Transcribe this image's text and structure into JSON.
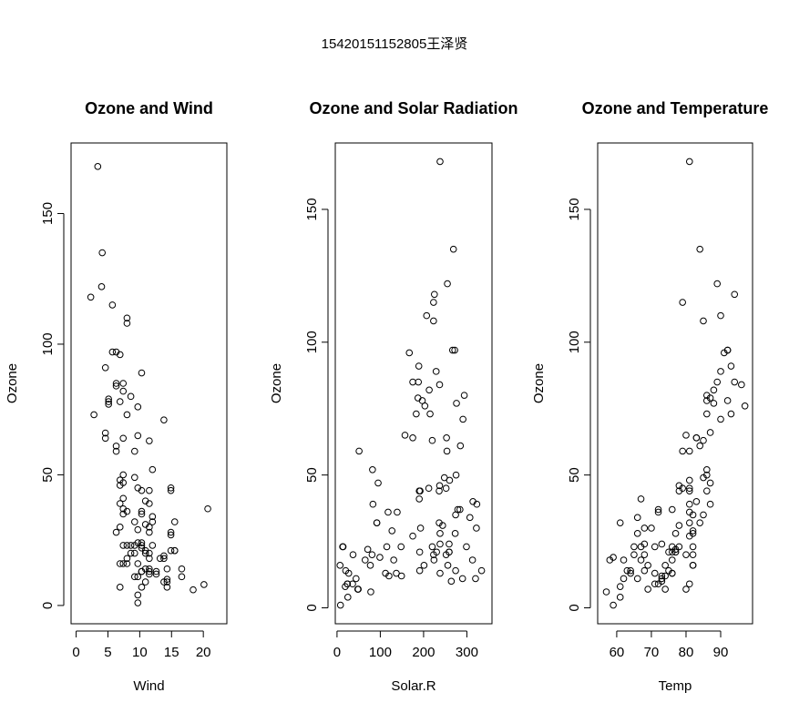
{
  "title": "15420151152805王泽贤",
  "chart_data": [
    {
      "type": "scatter",
      "title": "Ozone and Wind",
      "xlabel": "Wind",
      "ylabel": "Ozone",
      "color": "#000000",
      "xlim": [
        -0.8,
        23.7
      ],
      "ylim": [
        -7,
        177
      ],
      "xticks": [
        0,
        5,
        10,
        15,
        20
      ],
      "yticks": [
        0,
        50,
        100,
        150
      ],
      "x": [
        7.4,
        8.0,
        12.6,
        11.5,
        14.9,
        8.6,
        13.8,
        20.1,
        6.9,
        9.7,
        9.2,
        10.9,
        13.2,
        11.5,
        12.0,
        18.4,
        11.5,
        9.7,
        9.7,
        16.6,
        9.7,
        12.0,
        12.0,
        14.9,
        5.7,
        7.4,
        9.7,
        13.8,
        11.5,
        8.0,
        14.9,
        20.7,
        9.2,
        11.5,
        10.3,
        4.1,
        9.2,
        9.2,
        4.6,
        10.9,
        5.1,
        6.3,
        5.7,
        7.4,
        14.3,
        14.9,
        14.3,
        6.9,
        10.3,
        6.3,
        5.1,
        11.5,
        6.9,
        8.6,
        8.0,
        8.6,
        12.0,
        7.4,
        7.4,
        7.4,
        9.2,
        6.9,
        13.8,
        7.4,
        6.9,
        7.4,
        4.6,
        4.0,
        10.3,
        8.0,
        11.5,
        11.5,
        9.7,
        10.3,
        6.3,
        7.4,
        10.9,
        10.3,
        15.5,
        14.3,
        9.7,
        3.4,
        8.0,
        9.7,
        2.3,
        6.3,
        6.3,
        6.9,
        5.1,
        2.8,
        4.6,
        7.4,
        15.5,
        10.9,
        10.3,
        10.9,
        9.7,
        14.9,
        15.5,
        6.3,
        10.9,
        11.5,
        6.9,
        13.8,
        10.3,
        10.3,
        8.0,
        12.6,
        9.2,
        10.3,
        10.3,
        16.6,
        6.9,
        14.3,
        8.0,
        11.5
      ],
      "values": [
        41,
        36,
        12,
        18,
        28,
        23,
        19,
        8,
        7,
        16,
        11,
        14,
        18,
        14,
        34,
        6,
        30,
        11,
        1,
        11,
        4,
        32,
        23,
        45,
        115,
        37,
        29,
        71,
        39,
        23,
        21,
        37,
        20,
        12,
        13,
        135,
        49,
        32,
        64,
        40,
        77,
        97,
        97,
        85,
        10,
        27,
        7,
        48,
        35,
        61,
        79,
        63,
        16,
        80,
        108,
        20,
        52,
        82,
        50,
        64,
        59,
        39,
        9,
        16,
        78,
        35,
        66,
        122,
        89,
        110,
        44,
        28,
        65,
        22,
        59,
        23,
        31,
        44,
        21,
        9,
        45,
        168,
        73,
        76,
        118,
        84,
        85,
        96,
        78,
        73,
        91,
        47,
        32,
        20,
        23,
        21,
        24,
        44,
        21,
        28,
        9,
        13,
        46,
        18,
        13,
        24,
        16,
        13,
        23,
        36,
        7,
        14,
        30,
        14,
        18,
        20
      ]
    },
    {
      "type": "scatter",
      "title": "Ozone and Solar Radiation",
      "xlabel": "Solar.R",
      "ylabel": "Ozone",
      "color": "#000000",
      "xlim": [
        -4,
        358
      ],
      "ylim": [
        -6,
        175
      ],
      "xticks": [
        0,
        100,
        200,
        300
      ],
      "yticks": [
        0,
        50,
        100,
        150
      ],
      "x": [
        190,
        118,
        149,
        313,
        299,
        99,
        19,
        256,
        290,
        274,
        65,
        334,
        307,
        78,
        322,
        44,
        8,
        320,
        25,
        92,
        13,
        252,
        223,
        279,
        127,
        291,
        323,
        148,
        191,
        284,
        37,
        120,
        137,
        269,
        248,
        236,
        175,
        314,
        276,
        267,
        272,
        175,
        264,
        175,
        48,
        260,
        274,
        285,
        187,
        220,
        7,
        294,
        223,
        81,
        82,
        213,
        275,
        253,
        254,
        83,
        24,
        77,
        255,
        229,
        207,
        192,
        273,
        157,
        71,
        51,
        115,
        244,
        190,
        259,
        36,
        212,
        238,
        215,
        203,
        225,
        237,
        188,
        167,
        197,
        183,
        189,
        95,
        92,
        252,
        220,
        230,
        259,
        236,
        259,
        238,
        24,
        112,
        237,
        224,
        27,
        238,
        201,
        238,
        14,
        139,
        49,
        20,
        193,
        191,
        131,
        223
      ],
      "values": [
        41,
        36,
        12,
        18,
        23,
        19,
        8,
        16,
        11,
        14,
        18,
        14,
        34,
        6,
        30,
        11,
        1,
        11,
        4,
        32,
        23,
        45,
        115,
        37,
        29,
        71,
        39,
        23,
        21,
        37,
        20,
        12,
        13,
        135,
        49,
        32,
        64,
        40,
        77,
        97,
        97,
        85,
        10,
        27,
        7,
        48,
        35,
        61,
        79,
        63,
        16,
        80,
        108,
        20,
        52,
        82,
        50,
        64,
        59,
        39,
        9,
        16,
        122,
        89,
        110,
        44,
        28,
        65,
        22,
        59,
        23,
        31,
        44,
        21,
        9,
        45,
        168,
        73,
        76,
        118,
        84,
        85,
        96,
        78,
        73,
        91,
        47,
        32,
        20,
        23,
        21,
        24,
        44,
        21,
        28,
        9,
        13,
        46,
        18,
        13,
        24,
        16,
        13,
        23,
        36,
        7,
        14,
        30,
        14,
        18,
        20
      ]
    },
    {
      "type": "scatter",
      "title": "Ozone and Temperature",
      "xlabel": "Temp",
      "ylabel": "Ozone",
      "color": "#000000",
      "xlim": [
        54.5,
        99.2
      ],
      "ylim": [
        -6,
        175
      ],
      "xticks": [
        60,
        70,
        80,
        90
      ],
      "yticks": [
        0,
        50,
        100,
        150
      ],
      "x": [
        67,
        72,
        74,
        62,
        66,
        65,
        59,
        61,
        74,
        69,
        66,
        68,
        58,
        64,
        66,
        57,
        68,
        62,
        59,
        73,
        61,
        61,
        67,
        81,
        79,
        76,
        82,
        90,
        87,
        82,
        77,
        72,
        65,
        73,
        76,
        84,
        85,
        81,
        83,
        83,
        88,
        92,
        92,
        89,
        73,
        81,
        80,
        81,
        82,
        84,
        87,
        85,
        74,
        86,
        85,
        82,
        86,
        88,
        86,
        83,
        81,
        81,
        81,
        82,
        86,
        85,
        87,
        89,
        90,
        90,
        86,
        82,
        80,
        77,
        79,
        76,
        78,
        78,
        77,
        72,
        79,
        81,
        86,
        97,
        94,
        96,
        94,
        91,
        92,
        93,
        93,
        87,
        84,
        80,
        78,
        75,
        73,
        81,
        76,
        77,
        71,
        71,
        78,
        67,
        76,
        68,
        82,
        64,
        71,
        81,
        69,
        63,
        70,
        75,
        76,
        68
      ],
      "values": [
        41,
        36,
        12,
        18,
        28,
        23,
        19,
        8,
        7,
        16,
        11,
        14,
        18,
        14,
        34,
        6,
        30,
        11,
        1,
        11,
        4,
        32,
        23,
        45,
        115,
        37,
        29,
        71,
        39,
        23,
        21,
        37,
        20,
        12,
        13,
        135,
        49,
        32,
        64,
        40,
        77,
        97,
        97,
        85,
        10,
        27,
        7,
        48,
        35,
        61,
        79,
        63,
        16,
        80,
        108,
        20,
        52,
        82,
        50,
        64,
        59,
        39,
        9,
        16,
        78,
        35,
        66,
        122,
        89,
        110,
        44,
        28,
        65,
        22,
        59,
        23,
        31,
        44,
        21,
        9,
        45,
        168,
        73,
        76,
        118,
        84,
        85,
        96,
        78,
        73,
        91,
        47,
        32,
        20,
        23,
        21,
        24,
        44,
        21,
        28,
        9,
        13,
        46,
        18,
        13,
        24,
        16,
        13,
        23,
        36,
        7,
        14,
        30,
        14,
        18,
        20
      ]
    }
  ]
}
